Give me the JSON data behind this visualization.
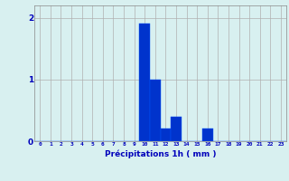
{
  "hours": [
    0,
    1,
    2,
    3,
    4,
    5,
    6,
    7,
    8,
    9,
    10,
    11,
    12,
    13,
    14,
    15,
    16,
    17,
    18,
    19,
    20,
    21,
    22,
    23
  ],
  "values": [
    0,
    0,
    0,
    0,
    0,
    0,
    0,
    0,
    0,
    0,
    1.9,
    1.0,
    0.2,
    0.4,
    0,
    0,
    0.2,
    0,
    0,
    0,
    0,
    0,
    0,
    0
  ],
  "bar_color": "#0033cc",
  "bar_edge_color": "#0055ff",
  "background_color": "#d8f0f0",
  "grid_color": "#b0b0b0",
  "text_color": "#0000bb",
  "xlabel": "Précipitations 1h ( mm )",
  "ylim": [
    0,
    2.2
  ],
  "yticks": [
    0,
    1,
    2
  ],
  "xlim": [
    -0.5,
    23.5
  ],
  "figsize": [
    3.2,
    2.0
  ],
  "dpi": 100
}
